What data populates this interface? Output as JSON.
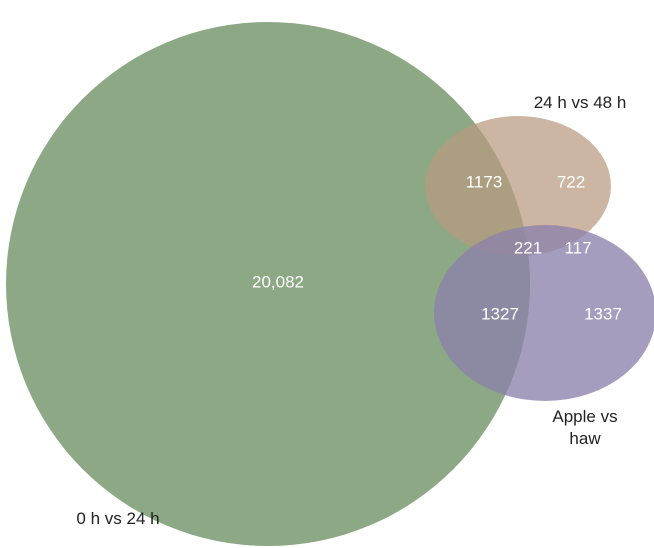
{
  "chart_data": {
    "type": "venn",
    "sets": [
      {
        "name": "0 h vs 24 h",
        "color": "#8ca884"
      },
      {
        "name": "24 h vs 48 h",
        "color": "#b99a80"
      },
      {
        "name": "Apple vs haw",
        "color": "#8a82aa"
      }
    ],
    "values": [
      20082,
      1173,
      722,
      221,
      117,
      1327,
      1337
    ],
    "value_labels": [
      "20,082",
      "1173",
      "722",
      "221",
      "117",
      "1327",
      "1337"
    ]
  }
}
